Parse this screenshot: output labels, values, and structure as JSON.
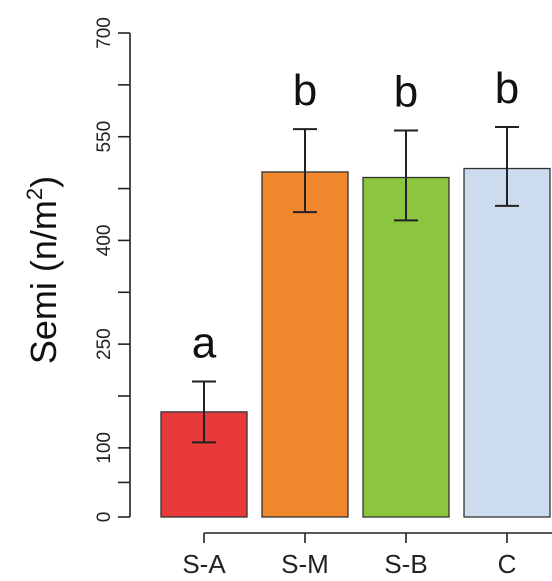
{
  "chart_data": {
    "type": "bar",
    "ylabel_main": "Semi (n/m",
    "ylabel_sup": "2",
    "ylabel_end": ")",
    "categories": [
      "S-A",
      "S-M",
      "S-B",
      "C"
    ],
    "values": [
      152,
      499,
      491,
      504
    ],
    "error_low": [
      108,
      441,
      429,
      450
    ],
    "error_high": [
      196,
      561,
      559,
      564
    ],
    "significance": [
      "a",
      "b",
      "b",
      "b"
    ],
    "colors": [
      "#e83a3a",
      "#f0872d",
      "#8cc63f",
      "#ccdcee"
    ],
    "ylim": [
      0,
      700
    ],
    "yticks": [
      0,
      100,
      250,
      400,
      550,
      700
    ],
    "minor_ticks": [
      50,
      175,
      325,
      475,
      625
    ],
    "grid": false
  }
}
